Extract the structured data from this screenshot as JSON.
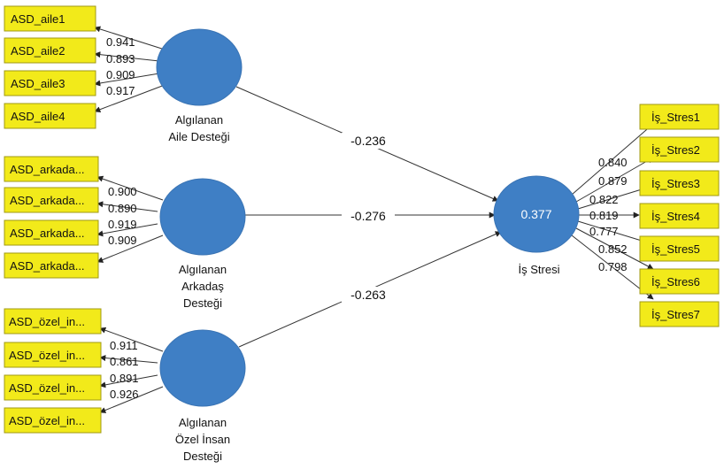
{
  "latents": {
    "aile": {
      "label_lines": [
        "Algılanan",
        "Aile Desteği"
      ]
    },
    "arkadas": {
      "label_lines": [
        "Algılanan",
        "Arkadaş",
        "Desteği"
      ]
    },
    "ozel": {
      "label_lines": [
        "Algılanan",
        "Özel İnsan",
        "Desteği"
      ]
    },
    "stres": {
      "label_lines": [
        "İş Stresi"
      ],
      "r_squared": "0.377"
    }
  },
  "indicators": {
    "aile": [
      "ASD_aile1",
      "ASD_aile2",
      "ASD_aile3",
      "ASD_aile4"
    ],
    "arkadas": [
      "ASD_arkada...",
      "ASD_arkada...",
      "ASD_arkada...",
      "ASD_arkada..."
    ],
    "ozel": [
      "ASD_özel_in...",
      "ASD_özel_in...",
      "ASD_özel_in...",
      "ASD_özel_in..."
    ],
    "stres": [
      "İş_Stres1",
      "İş_Stres2",
      "İş_Stres3",
      "İş_Stres4",
      "İş_Stres5",
      "İş_Stres6",
      "İş_Stres7"
    ]
  },
  "loadings": {
    "aile": [
      "0.941",
      "0.893",
      "0.909",
      "0.917"
    ],
    "arkadas": [
      "0.900",
      "0.890",
      "0.919",
      "0.909"
    ],
    "ozel": [
      "0.911",
      "0.861",
      "0.891",
      "0.926"
    ],
    "stres": [
      "0.840",
      "0.879",
      "0.822",
      "0.819",
      "0.777",
      "0.852",
      "0.798"
    ]
  },
  "paths": {
    "aile": "-0.236",
    "arkadas": "-0.276",
    "ozel": "-0.263"
  },
  "colors": {
    "latent_fill": "#3f7fc5",
    "indicator_fill": "#f2ea1a"
  }
}
